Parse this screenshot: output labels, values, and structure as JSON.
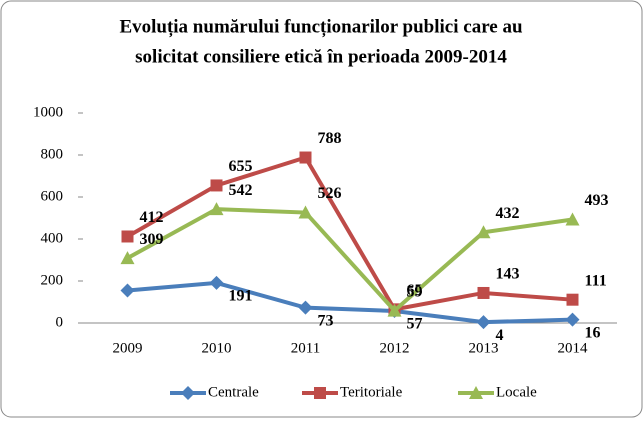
{
  "chart_data": {
    "type": "line",
    "title": [
      "Evoluția numărului funcționarilor publici care au",
      "solicitat consiliere etică în perioada 2009-2014"
    ],
    "categories": [
      "2009",
      "2010",
      "2011",
      "2012",
      "2013",
      "2014"
    ],
    "series": [
      {
        "name": "Centrale",
        "color": "#4a7ebb",
        "marker": "diamond",
        "values": [
          155,
          191,
          73,
          57,
          4,
          16
        ],
        "value_labels": [
          null,
          "191",
          "73",
          "57",
          "4",
          "16"
        ]
      },
      {
        "name": "Teritoriale",
        "color": "#be4b48",
        "marker": "square",
        "values": [
          412,
          655,
          788,
          65,
          143,
          111
        ],
        "value_labels": [
          "412",
          "655",
          "788",
          "65",
          "143",
          "111"
        ]
      },
      {
        "name": "Locale",
        "color": "#98b954",
        "marker": "triangle",
        "values": [
          309,
          542,
          526,
          59,
          432,
          493
        ],
        "value_labels": [
          "309",
          "542",
          "526",
          "59",
          "432",
          "493"
        ]
      }
    ],
    "ylim": [
      0,
      1000
    ],
    "yticks": [
      0,
      200,
      400,
      600,
      800,
      1000
    ],
    "legend": "bottom"
  }
}
